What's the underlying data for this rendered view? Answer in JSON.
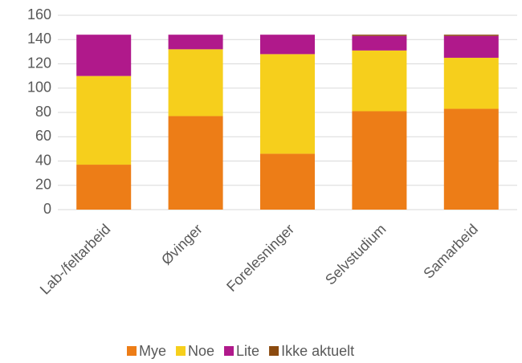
{
  "chart_data": {
    "type": "stacked_bar",
    "categories": [
      "Lab-/feltarbeid",
      "Øvinger",
      "Forelesninger",
      "Selvstudium",
      "Samarbeid"
    ],
    "series": [
      {
        "name": "Mye",
        "color": "#ed7d17",
        "values": [
          37,
          77,
          46,
          81,
          83
        ]
      },
      {
        "name": "Noe",
        "color": "#f6cf1c",
        "values": [
          73,
          55,
          82,
          50,
          42
        ]
      },
      {
        "name": "Lite",
        "color": "#b0198b",
        "values": [
          34,
          12,
          16,
          12,
          18
        ]
      },
      {
        "name": "Ikke aktuelt",
        "color": "#8b4a0f",
        "values": [
          0,
          0,
          0,
          1,
          1
        ]
      }
    ],
    "ylim": [
      0,
      160
    ],
    "yticks": [
      0,
      20,
      40,
      60,
      80,
      100,
      120,
      140,
      160
    ],
    "grid": true
  }
}
